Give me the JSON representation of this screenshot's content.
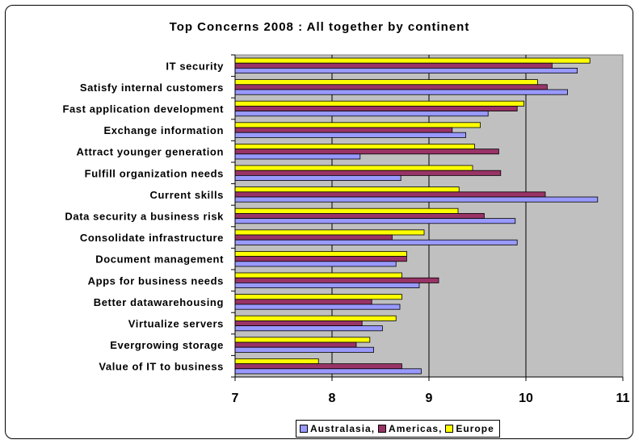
{
  "chart_data": {
    "type": "bar",
    "orientation": "horizontal",
    "title": "Top Concerns 2008 : All together by continent",
    "xlabel": "",
    "ylabel": "",
    "xlim": [
      7,
      11
    ],
    "x_ticks": [
      7,
      8,
      9,
      10,
      11
    ],
    "grid": "vertical major gridlines",
    "plot_background": "#c0c0c0",
    "legend_position": "bottom",
    "categories": [
      "IT security",
      "Satisfy internal customers",
      "Fast application development",
      "Exchange information",
      "Attract younger generation",
      "Fulfill organization needs",
      "Current skills",
      "Data security a business risk",
      "Consolidate infrastructure",
      "Document management",
      "Apps for business needs",
      "Better datawarehousing",
      "Virtualize servers",
      "Evergrowing storage",
      "Value of IT to business"
    ],
    "series": [
      {
        "name": "Australasia",
        "color": "#9999ff",
        "values": [
          10.53,
          10.43,
          9.61,
          9.38,
          8.29,
          8.71,
          10.74,
          9.89,
          9.91,
          8.66,
          8.9,
          8.7,
          8.52,
          8.43,
          8.92
        ]
      },
      {
        "name": "Americas",
        "color": "#993366",
        "values": [
          10.27,
          10.22,
          9.91,
          9.24,
          9.72,
          9.74,
          10.2,
          9.57,
          8.62,
          8.77,
          9.1,
          8.41,
          8.31,
          8.25,
          8.72
        ]
      },
      {
        "name": "Europe",
        "color": "#ffff00",
        "values": [
          10.66,
          10.12,
          9.98,
          9.53,
          9.47,
          9.45,
          9.31,
          9.3,
          8.95,
          8.77,
          8.72,
          8.72,
          8.66,
          8.39,
          7.86
        ]
      }
    ]
  },
  "legend": {
    "entries": [
      "Australasia,",
      "Americas,",
      "Europe"
    ]
  }
}
